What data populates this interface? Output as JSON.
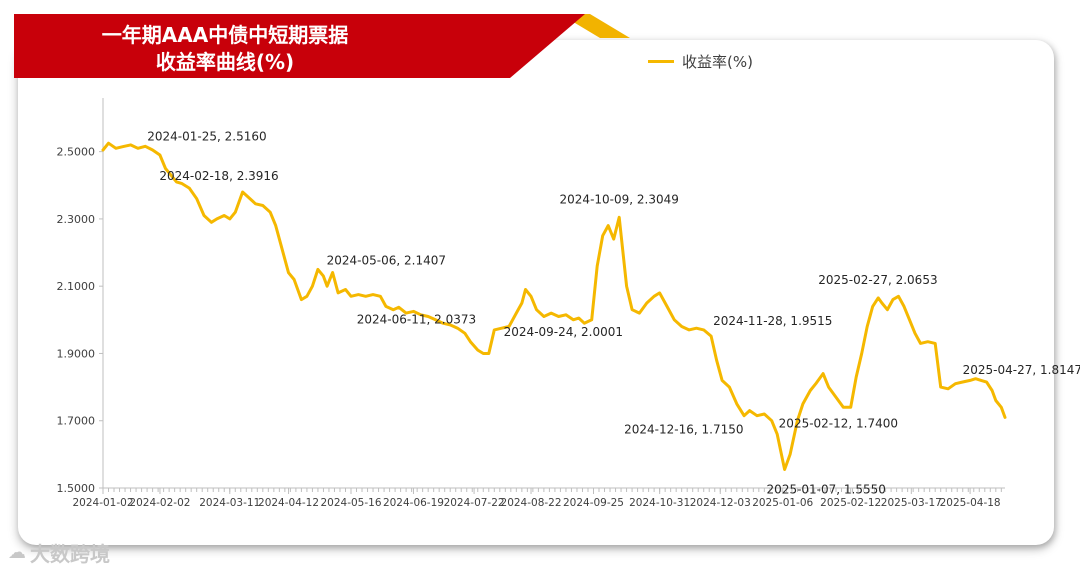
{
  "title": {
    "line1": "一年期AAA中债中短期票据",
    "line2": "收益率曲线(%)"
  },
  "watermark": {
    "icon": "cloud-icon",
    "text": "大数跨境"
  },
  "colors": {
    "title_red": "#C8000A",
    "title_gold": "#F2B300",
    "series": "#F5B800",
    "axis": "#BFBFBF",
    "text": "#404040"
  },
  "chart_data": {
    "type": "line",
    "title": "一年期AAA中债中短期票据收益率曲线(%)",
    "xlabel": "",
    "ylabel": "",
    "x_range": [
      "2024-01-02",
      "2025-05-02"
    ],
    "ylim": [
      1.5,
      2.6
    ],
    "y_ticks": [
      "1.5000",
      "1.7000",
      "1.9000",
      "2.1000",
      "2.3000",
      "2.5000"
    ],
    "x_ticks": [
      "2024-01-02",
      "2024-02-02",
      "2024-03-11",
      "2024-04-12",
      "2024-05-16",
      "2024-06-19",
      "2024-07-22",
      "2024-08-22",
      "2024-09-25",
      "2024-10-31",
      "2024-12-03",
      "2025-01-06",
      "2025-02-12",
      "2025-03-17",
      "2025-04-18"
    ],
    "grid": false,
    "legend": "top",
    "series": [
      {
        "name": "收益率(%)",
        "points": [
          [
            "2024-01-02",
            2.505
          ],
          [
            "2024-01-05",
            2.525
          ],
          [
            "2024-01-09",
            2.51
          ],
          [
            "2024-01-13",
            2.515
          ],
          [
            "2024-01-17",
            2.52
          ],
          [
            "2024-01-21",
            2.51
          ],
          [
            "2024-01-25",
            2.516
          ],
          [
            "2024-01-29",
            2.505
          ],
          [
            "2024-02-02",
            2.49
          ],
          [
            "2024-02-05",
            2.45
          ],
          [
            "2024-02-08",
            2.43
          ],
          [
            "2024-02-11",
            2.41
          ],
          [
            "2024-02-14",
            2.405
          ],
          [
            "2024-02-18",
            2.3916
          ],
          [
            "2024-02-22",
            2.36
          ],
          [
            "2024-02-26",
            2.31
          ],
          [
            "2024-03-01",
            2.29
          ],
          [
            "2024-03-04",
            2.3
          ],
          [
            "2024-03-08",
            2.31
          ],
          [
            "2024-03-11",
            2.3
          ],
          [
            "2024-03-14",
            2.32
          ],
          [
            "2024-03-18",
            2.38
          ],
          [
            "2024-03-21",
            2.365
          ],
          [
            "2024-03-25",
            2.345
          ],
          [
            "2024-03-29",
            2.34
          ],
          [
            "2024-04-02",
            2.32
          ],
          [
            "2024-04-05",
            2.28
          ],
          [
            "2024-04-08",
            2.22
          ],
          [
            "2024-04-12",
            2.14
          ],
          [
            "2024-04-15",
            2.12
          ],
          [
            "2024-04-19",
            2.06
          ],
          [
            "2024-04-22",
            2.07
          ],
          [
            "2024-04-25",
            2.1
          ],
          [
            "2024-04-28",
            2.15
          ],
          [
            "2024-05-01",
            2.13
          ],
          [
            "2024-05-03",
            2.1
          ],
          [
            "2024-05-06",
            2.1407
          ],
          [
            "2024-05-09",
            2.08
          ],
          [
            "2024-05-13",
            2.09
          ],
          [
            "2024-05-16",
            2.07
          ],
          [
            "2024-05-20",
            2.075
          ],
          [
            "2024-05-24",
            2.07
          ],
          [
            "2024-05-28",
            2.075
          ],
          [
            "2024-06-01",
            2.07
          ],
          [
            "2024-06-04",
            2.04
          ],
          [
            "2024-06-08",
            2.03
          ],
          [
            "2024-06-11",
            2.0373
          ],
          [
            "2024-06-15",
            2.02
          ],
          [
            "2024-06-19",
            2.025
          ],
          [
            "2024-06-23",
            2.015
          ],
          [
            "2024-06-27",
            2.01
          ],
          [
            "2024-07-01",
            2.0
          ],
          [
            "2024-07-05",
            1.99
          ],
          [
            "2024-07-09",
            1.985
          ],
          [
            "2024-07-13",
            1.975
          ],
          [
            "2024-07-17",
            1.96
          ],
          [
            "2024-07-20",
            1.935
          ],
          [
            "2024-07-24",
            1.91
          ],
          [
            "2024-07-27",
            1.9
          ],
          [
            "2024-07-30",
            1.9
          ],
          [
            "2024-08-02",
            1.97
          ],
          [
            "2024-08-06",
            1.975
          ],
          [
            "2024-08-10",
            1.98
          ],
          [
            "2024-08-14",
            2.02
          ],
          [
            "2024-08-17",
            2.05
          ],
          [
            "2024-08-19",
            2.09
          ],
          [
            "2024-08-22",
            2.07
          ],
          [
            "2024-08-25",
            2.03
          ],
          [
            "2024-08-29",
            2.01
          ],
          [
            "2024-09-02",
            2.02
          ],
          [
            "2024-09-06",
            2.01
          ],
          [
            "2024-09-10",
            2.015
          ],
          [
            "2024-09-14",
            2.0
          ],
          [
            "2024-09-17",
            2.005
          ],
          [
            "2024-09-20",
            1.99
          ],
          [
            "2024-09-24",
            2.0001
          ],
          [
            "2024-09-27",
            2.16
          ],
          [
            "2024-09-30",
            2.25
          ],
          [
            "2024-10-03",
            2.28
          ],
          [
            "2024-10-06",
            2.24
          ],
          [
            "2024-10-09",
            2.3049
          ],
          [
            "2024-10-13",
            2.1
          ],
          [
            "2024-10-16",
            2.03
          ],
          [
            "2024-10-20",
            2.02
          ],
          [
            "2024-10-24",
            2.05
          ],
          [
            "2024-10-28",
            2.07
          ],
          [
            "2024-10-31",
            2.08
          ],
          [
            "2024-11-04",
            2.04
          ],
          [
            "2024-11-08",
            2.0
          ],
          [
            "2024-11-12",
            1.98
          ],
          [
            "2024-11-16",
            1.97
          ],
          [
            "2024-11-20",
            1.975
          ],
          [
            "2024-11-24",
            1.97
          ],
          [
            "2024-11-28",
            1.9515
          ],
          [
            "2024-12-01",
            1.88
          ],
          [
            "2024-12-04",
            1.82
          ],
          [
            "2024-12-08",
            1.8
          ],
          [
            "2024-12-12",
            1.75
          ],
          [
            "2024-12-16",
            1.715
          ],
          [
            "2024-12-19",
            1.73
          ],
          [
            "2024-12-23",
            1.715
          ],
          [
            "2024-12-27",
            1.72
          ],
          [
            "2024-12-31",
            1.7
          ],
          [
            "2025-01-03",
            1.66
          ],
          [
            "2025-01-07",
            1.555
          ],
          [
            "2025-01-10",
            1.6
          ],
          [
            "2025-01-14",
            1.7
          ],
          [
            "2025-01-17",
            1.75
          ],
          [
            "2025-01-21",
            1.79
          ],
          [
            "2025-01-24",
            1.81
          ],
          [
            "2025-01-28",
            1.84
          ],
          [
            "2025-01-31",
            1.8
          ],
          [
            "2025-02-04",
            1.77
          ],
          [
            "2025-02-08",
            1.74
          ],
          [
            "2025-02-12",
            1.74
          ],
          [
            "2025-02-15",
            1.83
          ],
          [
            "2025-02-18",
            1.9
          ],
          [
            "2025-02-21",
            1.98
          ],
          [
            "2025-02-24",
            2.04
          ],
          [
            "2025-02-27",
            2.0653
          ],
          [
            "2025-03-01",
            2.05
          ],
          [
            "2025-03-04",
            2.03
          ],
          [
            "2025-03-07",
            2.06
          ],
          [
            "2025-03-10",
            2.07
          ],
          [
            "2025-03-13",
            2.04
          ],
          [
            "2025-03-16",
            2.0
          ],
          [
            "2025-03-19",
            1.96
          ],
          [
            "2025-03-22",
            1.93
          ],
          [
            "2025-03-26",
            1.935
          ],
          [
            "2025-03-30",
            1.93
          ],
          [
            "2025-04-02",
            1.8
          ],
          [
            "2025-04-06",
            1.795
          ],
          [
            "2025-04-10",
            1.81
          ],
          [
            "2025-04-14",
            1.815
          ],
          [
            "2025-04-18",
            1.82
          ],
          [
            "2025-04-21",
            1.825
          ],
          [
            "2025-04-24",
            1.82
          ],
          [
            "2025-04-27",
            1.8147
          ],
          [
            "2025-04-30",
            1.79
          ],
          [
            "2025-05-02",
            1.76
          ],
          [
            "2025-05-05",
            1.74
          ],
          [
            "2025-05-07",
            1.71
          ]
        ]
      }
    ],
    "annotations": [
      {
        "x": "2024-01-25",
        "y": 2.516,
        "text": "2024-01-25, 2.5160"
      },
      {
        "x": "2024-02-18",
        "y": 2.3916,
        "text": "2024-02-18, 2.3916"
      },
      {
        "x": "2024-05-06",
        "y": 2.1407,
        "text": "2024-05-06, 2.1407"
      },
      {
        "x": "2024-06-11",
        "y": 2.0373,
        "text": "2024-06-11, 2.0373"
      },
      {
        "x": "2024-10-09",
        "y": 2.3049,
        "text": "2024-10-09, 2.3049"
      },
      {
        "x": "2024-09-24",
        "y": 2.0001,
        "text": "2024-09-24, 2.0001"
      },
      {
        "x": "2024-11-28",
        "y": 1.9515,
        "text": "2024-11-28, 1.9515"
      },
      {
        "x": "2024-12-16",
        "y": 1.715,
        "text": "2024-12-16, 1.7150"
      },
      {
        "x": "2025-01-07",
        "y": 1.555,
        "text": "2025-01-07, 1.5550"
      },
      {
        "x": "2025-02-12",
        "y": 1.74,
        "text": "2025-02-12, 1.7400"
      },
      {
        "x": "2025-02-27",
        "y": 2.0653,
        "text": "2025-02-27, 2.0653"
      },
      {
        "x": "2025-04-27",
        "y": 1.8147,
        "text": "2025-04-27, 1.8147"
      }
    ]
  }
}
